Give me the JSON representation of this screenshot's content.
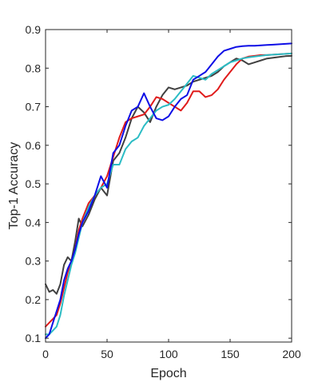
{
  "chart_data": {
    "type": "line",
    "xlabel": "Epoch",
    "ylabel": "Top-1 Accuracy",
    "xlim": [
      0,
      200
    ],
    "ylim": [
      0.09,
      0.9
    ],
    "xticks": [
      0,
      50,
      100,
      150,
      200
    ],
    "yticks": [
      0.1,
      0.2,
      0.3,
      0.4,
      0.5,
      0.6,
      0.7,
      0.8,
      0.9
    ],
    "xtick_labels": [
      "0",
      "50",
      "100",
      "150",
      "200"
    ],
    "ytick_labels": [
      "0.1",
      "0.2",
      "0.3",
      "0.4",
      "0.5",
      "0.6",
      "0.7",
      "0.8",
      "0.9"
    ],
    "grid": false,
    "legend": "none",
    "series": [
      {
        "color": "#404040",
        "x": [
          0,
          3,
          6,
          9,
          12,
          15,
          18,
          21,
          24,
          27,
          30,
          35,
          40,
          45,
          50,
          55,
          60,
          65,
          70,
          75,
          80,
          85,
          90,
          95,
          100,
          105,
          110,
          115,
          120,
          125,
          130,
          135,
          140,
          145,
          150,
          155,
          160,
          165,
          170,
          175,
          180,
          185,
          190,
          195,
          200
        ],
        "y": [
          0.24,
          0.22,
          0.225,
          0.215,
          0.24,
          0.29,
          0.31,
          0.3,
          0.35,
          0.41,
          0.39,
          0.42,
          0.46,
          0.49,
          0.47,
          0.56,
          0.58,
          0.62,
          0.67,
          0.7,
          0.685,
          0.66,
          0.7,
          0.73,
          0.75,
          0.745,
          0.75,
          0.755,
          0.765,
          0.77,
          0.775,
          0.78,
          0.79,
          0.805,
          0.815,
          0.825,
          0.82,
          0.81,
          0.815,
          0.82,
          0.825,
          0.827,
          0.829,
          0.831,
          0.832
        ]
      },
      {
        "color": "#e01b1b",
        "x": [
          0,
          3,
          6,
          9,
          12,
          15,
          18,
          21,
          24,
          27,
          30,
          35,
          40,
          45,
          50,
          55,
          60,
          65,
          70,
          75,
          80,
          85,
          90,
          95,
          100,
          105,
          110,
          115,
          120,
          125,
          130,
          135,
          140,
          145,
          150,
          155,
          160,
          165,
          170,
          175,
          180,
          185,
          190,
          195,
          200
        ],
        "y": [
          0.13,
          0.14,
          0.15,
          0.16,
          0.19,
          0.23,
          0.27,
          0.3,
          0.33,
          0.38,
          0.41,
          0.45,
          0.47,
          0.49,
          0.52,
          0.57,
          0.62,
          0.66,
          0.67,
          0.675,
          0.68,
          0.7,
          0.725,
          0.72,
          0.71,
          0.7,
          0.69,
          0.71,
          0.74,
          0.74,
          0.725,
          0.73,
          0.745,
          0.77,
          0.79,
          0.81,
          0.825,
          0.83,
          0.832,
          0.834,
          0.834,
          0.835,
          0.836,
          0.837,
          0.838
        ]
      },
      {
        "color": "#2bbcc4",
        "x": [
          0,
          3,
          6,
          9,
          12,
          15,
          18,
          21,
          24,
          27,
          30,
          35,
          40,
          45,
          50,
          55,
          60,
          65,
          70,
          75,
          80,
          85,
          90,
          95,
          100,
          105,
          110,
          115,
          120,
          125,
          130,
          135,
          140,
          145,
          150,
          155,
          160,
          165,
          170,
          175,
          180,
          185,
          190,
          195,
          200
        ],
        "y": [
          0.11,
          0.11,
          0.12,
          0.13,
          0.16,
          0.21,
          0.25,
          0.29,
          0.32,
          0.36,
          0.4,
          0.44,
          0.47,
          0.49,
          0.5,
          0.55,
          0.55,
          0.59,
          0.61,
          0.62,
          0.65,
          0.67,
          0.69,
          0.7,
          0.705,
          0.72,
          0.74,
          0.76,
          0.78,
          0.775,
          0.77,
          0.785,
          0.795,
          0.805,
          0.815,
          0.82,
          0.825,
          0.828,
          0.83,
          0.832,
          0.834,
          0.835,
          0.836,
          0.837,
          0.838
        ]
      },
      {
        "color": "#0e0ee6",
        "x": [
          0,
          3,
          6,
          9,
          12,
          15,
          18,
          21,
          24,
          27,
          30,
          35,
          40,
          45,
          50,
          55,
          60,
          65,
          70,
          75,
          80,
          85,
          90,
          95,
          100,
          105,
          110,
          115,
          120,
          125,
          130,
          135,
          140,
          145,
          150,
          155,
          160,
          165,
          170,
          175,
          180,
          185,
          190,
          195,
          200
        ],
        "y": [
          0.1,
          0.11,
          0.14,
          0.17,
          0.2,
          0.25,
          0.28,
          0.3,
          0.33,
          0.37,
          0.4,
          0.43,
          0.47,
          0.52,
          0.49,
          0.58,
          0.6,
          0.65,
          0.69,
          0.7,
          0.735,
          0.7,
          0.67,
          0.665,
          0.675,
          0.7,
          0.72,
          0.73,
          0.77,
          0.78,
          0.79,
          0.81,
          0.83,
          0.845,
          0.85,
          0.855,
          0.857,
          0.858,
          0.858,
          0.859,
          0.86,
          0.861,
          0.862,
          0.863,
          0.864
        ]
      }
    ]
  }
}
